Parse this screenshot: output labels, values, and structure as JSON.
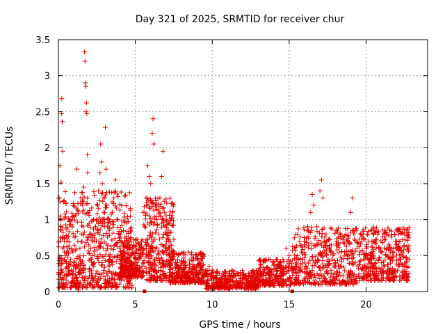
{
  "chart_data": {
    "type": "scatter",
    "title": "Day 321 of 2025, SRMTID for receiver chur",
    "xlabel": "GPS time / hours",
    "ylabel": "SRMTID / TECUs",
    "xlim": [
      0,
      24
    ],
    "ylim": [
      0,
      3.5
    ],
    "x_ticks": [
      0,
      5,
      10,
      15,
      20
    ],
    "y_ticks": [
      0,
      0.5,
      1,
      1.5,
      2,
      2.5,
      3,
      3.5
    ],
    "x_tick_labels": [
      "0",
      "5",
      "10",
      "15",
      "20"
    ],
    "y_tick_labels": [
      "0",
      "0.5",
      "1",
      "1.5",
      "2",
      "2.5",
      "3",
      "3.5"
    ],
    "grid": true,
    "marker": "+",
    "color": "#e00000",
    "series": [
      {
        "name": "SRMTID",
        "points": [
          [
            0.05,
            1.3
          ],
          [
            0.1,
            1.75
          ],
          [
            0.12,
            1.05
          ],
          [
            0.15,
            0.9
          ],
          [
            0.18,
            1.52
          ],
          [
            0.2,
            2.47
          ],
          [
            0.22,
            2.68
          ],
          [
            0.25,
            2.36
          ],
          [
            0.28,
            1.95
          ],
          [
            0.3,
            0.75
          ],
          [
            0.35,
            0.62
          ],
          [
            0.4,
            0.55
          ],
          [
            0.45,
            0.5
          ],
          [
            0.5,
            0.42
          ],
          [
            0.55,
            0.7
          ],
          [
            0.6,
            0.48
          ],
          [
            0.65,
            0.35
          ],
          [
            0.7,
            0.6
          ],
          [
            0.75,
            1.0
          ],
          [
            0.8,
            0.45
          ],
          [
            0.85,
            0.3
          ],
          [
            0.9,
            0.55
          ],
          [
            0.95,
            0.25
          ],
          [
            1.0,
            0.4
          ],
          [
            1.05,
            0.15
          ],
          [
            1.1,
            0.08
          ],
          [
            1.15,
            0.2
          ],
          [
            1.2,
            1.7
          ],
          [
            1.25,
            0.35
          ],
          [
            1.3,
            0.02
          ],
          [
            1.35,
            0.45
          ],
          [
            1.4,
            0.6
          ],
          [
            1.45,
            1.3
          ],
          [
            1.5,
            0.8
          ],
          [
            1.55,
            1.2
          ],
          [
            1.6,
            0.9
          ],
          [
            1.65,
            1.45
          ],
          [
            1.7,
            3.33
          ],
          [
            1.73,
            3.2
          ],
          [
            1.75,
            2.9
          ],
          [
            1.78,
            2.85
          ],
          [
            1.8,
            2.5
          ],
          [
            1.82,
            2.62
          ],
          [
            1.85,
            2.47
          ],
          [
            1.88,
            1.9
          ],
          [
            1.9,
            1.65
          ],
          [
            1.95,
            1.1
          ],
          [
            2.0,
            0.95
          ],
          [
            2.05,
            0.8
          ],
          [
            2.1,
            0.6
          ],
          [
            2.15,
            0.45
          ],
          [
            2.2,
            0.5
          ],
          [
            2.25,
            0.05
          ],
          [
            2.3,
            0.35
          ],
          [
            2.35,
            0.7
          ],
          [
            2.4,
            0.9
          ],
          [
            2.5,
            1.0
          ],
          [
            2.55,
            1.2
          ],
          [
            2.6,
            1.4
          ],
          [
            2.7,
            1.65
          ],
          [
            2.75,
            2.05
          ],
          [
            2.8,
            1.8
          ],
          [
            2.85,
            1.5
          ],
          [
            2.9,
            1.3
          ],
          [
            2.95,
            1.1
          ],
          [
            3.0,
            1.0
          ],
          [
            3.05,
            2.28
          ],
          [
            3.1,
            1.7
          ],
          [
            3.15,
            1.2
          ],
          [
            3.2,
            0.9
          ],
          [
            3.3,
            0.85
          ],
          [
            3.4,
            0.95
          ],
          [
            3.5,
            1.1
          ],
          [
            3.6,
            1.3
          ],
          [
            3.7,
            1.55
          ],
          [
            3.8,
            1.0
          ],
          [
            3.9,
            0.8
          ],
          [
            4.0,
            0.6
          ],
          [
            4.1,
            0.5
          ],
          [
            4.2,
            0.45
          ],
          [
            4.3,
            0.4
          ],
          [
            4.4,
            0.38
          ],
          [
            4.5,
            0.3
          ],
          [
            4.6,
            0.35
          ],
          [
            4.7,
            0.5
          ],
          [
            4.8,
            0.6
          ],
          [
            4.9,
            0.55
          ],
          [
            5.0,
            0.45
          ],
          [
            5.1,
            0.4
          ],
          [
            5.2,
            0.5
          ],
          [
            5.3,
            0.6
          ],
          [
            5.4,
            0.7
          ],
          [
            5.5,
            0.4
          ],
          [
            5.6,
            0.9
          ],
          [
            5.7,
            1.3
          ],
          [
            5.8,
            1.75
          ],
          [
            5.9,
            1.6
          ],
          [
            6.0,
            1.5
          ],
          [
            6.1,
            2.2
          ],
          [
            6.15,
            2.4
          ],
          [
            6.2,
            2.05
          ],
          [
            6.3,
            1.2
          ],
          [
            6.4,
            1.0
          ],
          [
            6.5,
            0.8
          ],
          [
            6.6,
            1.3
          ],
          [
            6.7,
            1.6
          ],
          [
            6.8,
            1.95
          ],
          [
            6.9,
            1.1
          ],
          [
            7.0,
            0.8
          ],
          [
            7.2,
            0.6
          ],
          [
            7.4,
            0.5
          ],
          [
            7.6,
            0.4
          ],
          [
            7.8,
            0.35
          ],
          [
            8.0,
            0.3
          ],
          [
            8.2,
            0.28
          ],
          [
            8.4,
            0.25
          ],
          [
            8.6,
            0.22
          ],
          [
            8.8,
            0.2
          ],
          [
            9.0,
            0.25
          ],
          [
            9.2,
            0.3
          ],
          [
            9.4,
            0.22
          ],
          [
            9.6,
            0.28
          ],
          [
            9.8,
            0.35
          ],
          [
            10.0,
            0.3
          ],
          [
            10.2,
            0.2
          ],
          [
            10.4,
            0.15
          ],
          [
            10.6,
            0.12
          ],
          [
            10.8,
            0.15
          ],
          [
            11.0,
            0.12
          ],
          [
            11.2,
            0.1
          ],
          [
            11.4,
            0.12
          ],
          [
            11.6,
            0.15
          ],
          [
            11.8,
            0.18
          ],
          [
            12.0,
            0.12
          ],
          [
            12.2,
            0.08
          ],
          [
            12.4,
            0.1
          ],
          [
            12.6,
            0.12
          ],
          [
            12.8,
            0.15
          ],
          [
            13.0,
            0.2
          ],
          [
            13.2,
            0.25
          ],
          [
            13.4,
            0.3
          ],
          [
            13.6,
            0.25
          ],
          [
            13.8,
            0.3
          ],
          [
            14.0,
            0.28
          ],
          [
            14.2,
            0.35
          ],
          [
            14.4,
            0.4
          ],
          [
            14.6,
            0.45
          ],
          [
            14.8,
            0.6
          ],
          [
            15.0,
            0.5
          ],
          [
            15.2,
            0.3
          ],
          [
            15.4,
            0.35
          ],
          [
            15.6,
            0.45
          ],
          [
            15.8,
            0.55
          ],
          [
            16.0,
            0.7
          ],
          [
            16.2,
            0.9
          ],
          [
            16.4,
            1.1
          ],
          [
            16.5,
            1.35
          ],
          [
            16.6,
            1.2
          ],
          [
            16.8,
            0.9
          ],
          [
            17.0,
            1.4
          ],
          [
            17.1,
            1.55
          ],
          [
            17.2,
            1.3
          ],
          [
            17.4,
            0.8
          ],
          [
            17.6,
            0.6
          ],
          [
            17.8,
            0.45
          ],
          [
            18.0,
            0.4
          ],
          [
            18.2,
            0.35
          ],
          [
            18.4,
            0.45
          ],
          [
            18.6,
            0.55
          ],
          [
            18.8,
            0.7
          ],
          [
            19.0,
            1.1
          ],
          [
            19.1,
            1.3
          ],
          [
            19.2,
            0.8
          ],
          [
            19.4,
            0.6
          ],
          [
            19.6,
            0.55
          ],
          [
            19.8,
            0.8
          ],
          [
            20.0,
            0.6
          ],
          [
            20.2,
            0.45
          ],
          [
            20.4,
            0.5
          ],
          [
            20.6,
            0.4
          ],
          [
            20.8,
            0.45
          ],
          [
            21.0,
            0.4
          ],
          [
            21.2,
            0.35
          ],
          [
            21.4,
            0.3
          ],
          [
            21.6,
            0.45
          ],
          [
            21.8,
            0.55
          ],
          [
            22.0,
            0.7
          ],
          [
            22.2,
            0.45
          ],
          [
            22.4,
            0.35
          ],
          [
            22.6,
            0.4
          ],
          [
            22.8,
            0.45
          ]
        ],
        "clusters": [
          {
            "x_range": [
              0.0,
              4.8
            ],
            "y_range": [
              0.05,
              1.4
            ],
            "count": 620
          },
          {
            "x_range": [
              4.0,
              5.5
            ],
            "y_range": [
              0.2,
              0.75
            ],
            "count": 220
          },
          {
            "x_range": [
              5.5,
              7.5
            ],
            "y_range": [
              0.15,
              1.3
            ],
            "count": 300
          },
          {
            "x_range": [
              7.2,
              9.5
            ],
            "y_range": [
              0.12,
              0.55
            ],
            "count": 300
          },
          {
            "x_range": [
              9.5,
              13.0
            ],
            "y_range": [
              0.04,
              0.3
            ],
            "count": 360
          },
          {
            "x_range": [
              13.0,
              15.2
            ],
            "y_range": [
              0.08,
              0.45
            ],
            "count": 240
          },
          {
            "x_range": [
              15.2,
              19.5
            ],
            "y_range": [
              0.1,
              0.9
            ],
            "count": 440
          },
          {
            "x_range": [
              19.5,
              22.8
            ],
            "y_range": [
              0.15,
              0.9
            ],
            "count": 380
          }
        ]
      }
    ],
    "x_axis_markers": [
      5.6,
      15.2
    ]
  }
}
